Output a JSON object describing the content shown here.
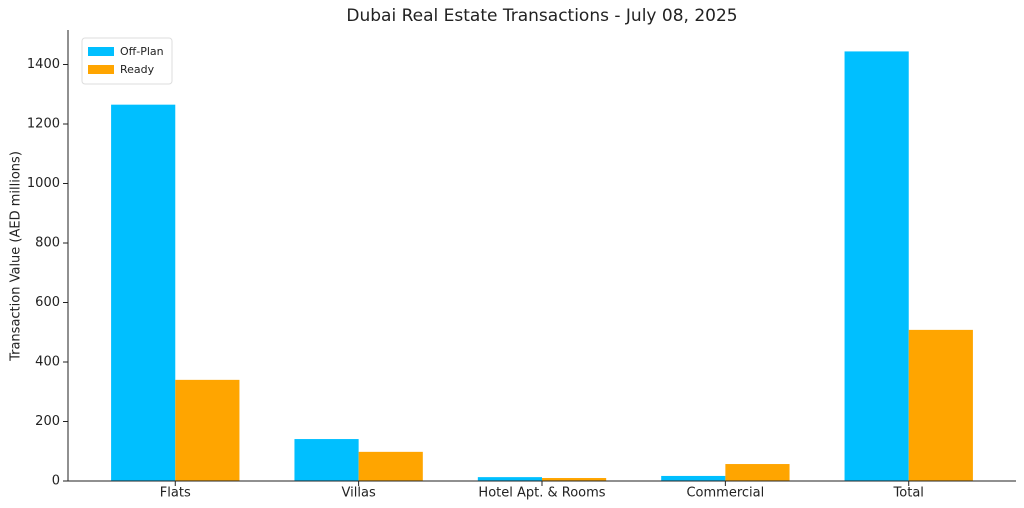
{
  "chart_data": {
    "type": "bar",
    "title": "Dubai Real Estate Transactions - July 08, 2025",
    "y_label": "Transaction Value (AED millions)",
    "categories": [
      "Flats",
      "Villas",
      "Hotel Apt. & Rooms",
      "Commercial",
      "Total"
    ],
    "series": [
      {
        "name": "Off-Plan",
        "color": "#00bfff",
        "values": [
          1265,
          141,
          13,
          17,
          1444
        ]
      },
      {
        "name": "Ready",
        "color": "#ffa500",
        "values": [
          340,
          98,
          10,
          57,
          508
        ]
      }
    ],
    "ylim": [
      0,
      1516
    ],
    "yticks": [
      0,
      200,
      400,
      600,
      800,
      1000,
      1200,
      1400
    ],
    "grid": false,
    "legend": "upper left"
  }
}
